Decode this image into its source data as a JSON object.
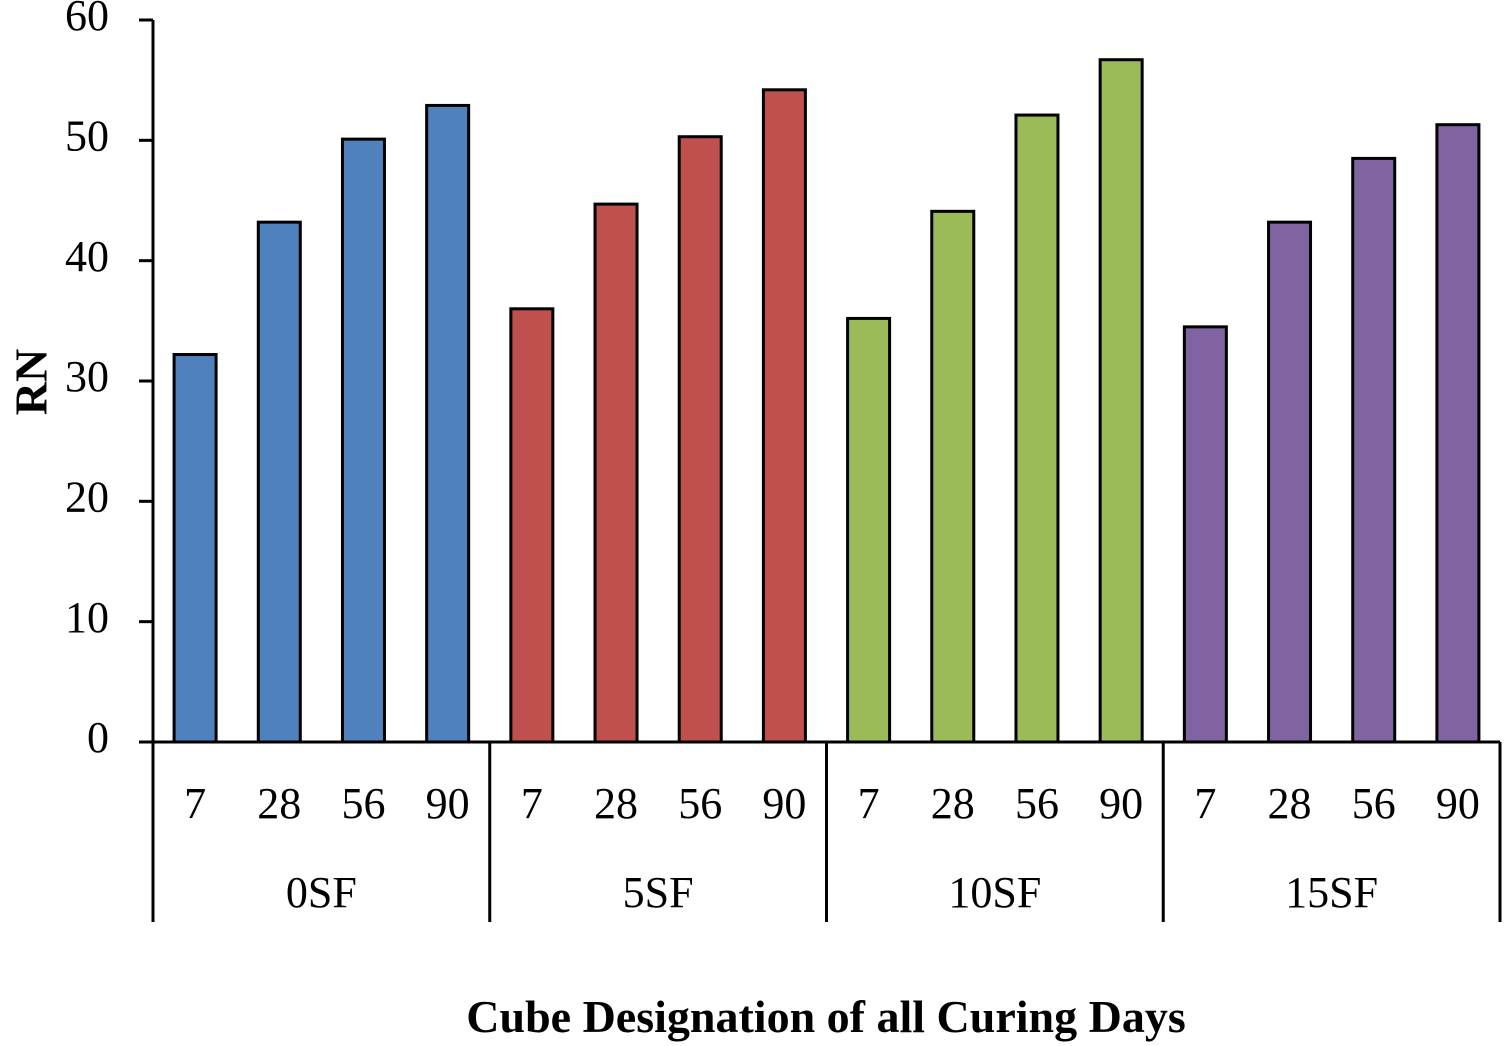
{
  "chart_data": {
    "type": "bar",
    "title": "",
    "xlabel": "Cube Designation of all Curing Days",
    "ylabel": "RN",
    "ylim": [
      0,
      60
    ],
    "yticks": [
      0,
      10,
      20,
      30,
      40,
      50,
      60
    ],
    "grid": false,
    "legend": "none",
    "groups": [
      {
        "name": "0SF",
        "color": "#4F81BD",
        "categories": [
          "7",
          "28",
          "56",
          "90"
        ],
        "values": [
          32.2,
          43.2,
          50.1,
          52.9
        ]
      },
      {
        "name": "5SF",
        "color": "#C0504D",
        "categories": [
          "7",
          "28",
          "56",
          "90"
        ],
        "values": [
          36.0,
          44.7,
          50.3,
          54.2
        ]
      },
      {
        "name": "10SF",
        "color": "#9BBB59",
        "categories": [
          "7",
          "28",
          "56",
          "90"
        ],
        "values": [
          35.2,
          44.1,
          52.1,
          56.7
        ]
      },
      {
        "name": "15SF",
        "color": "#8064A2",
        "categories": [
          "7",
          "28",
          "56",
          "90"
        ],
        "values": [
          34.5,
          43.2,
          48.5,
          51.3
        ]
      }
    ]
  }
}
